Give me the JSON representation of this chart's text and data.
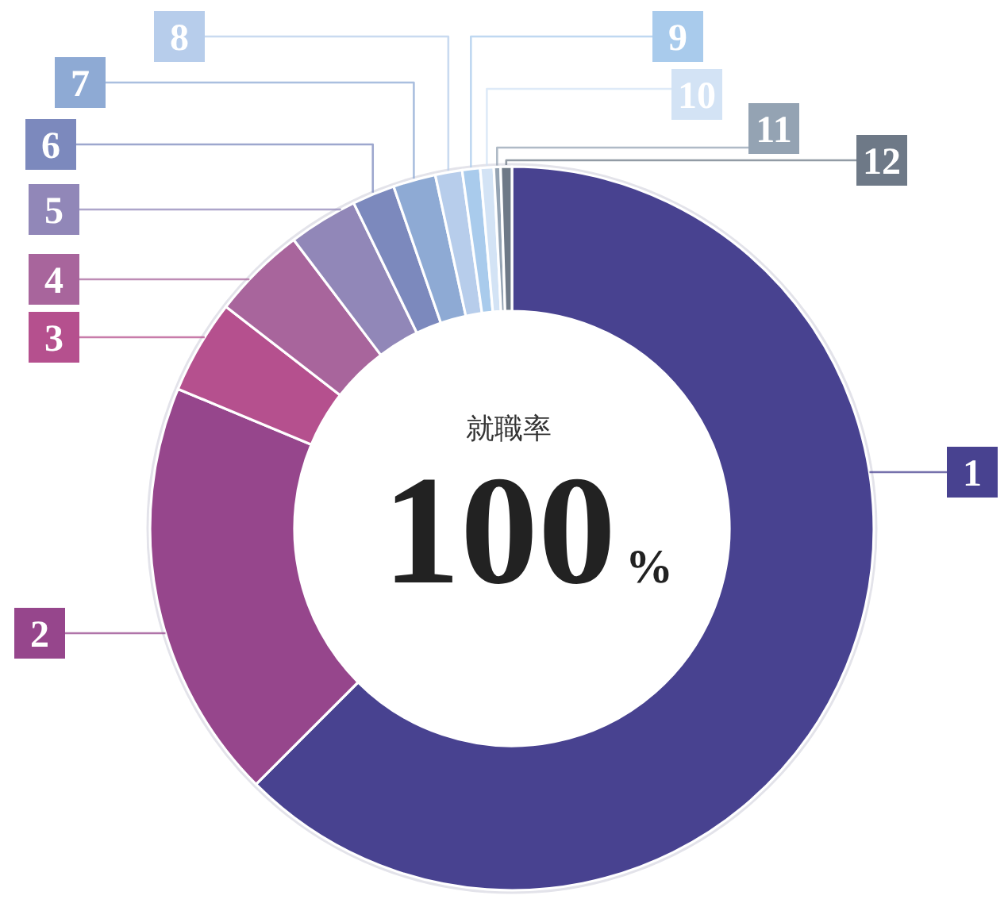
{
  "chart_data": {
    "type": "donut",
    "categories": [
      "1",
      "2",
      "3",
      "4",
      "5",
      "6",
      "7",
      "8",
      "9",
      "10",
      "11",
      "12"
    ],
    "values": [
      62.5,
      18.8,
      4.2,
      4.2,
      3.1,
      1.9,
      1.9,
      1.2,
      0.8,
      0.6,
      0.3,
      0.5
    ],
    "colors": [
      "#484290",
      "#96468c",
      "#b5508e",
      "#a8659c",
      "#9187b8",
      "#7c89bd",
      "#8eaad4",
      "#b7cdeb",
      "#a9cbec",
      "#d3e3f5",
      "#94a3b3",
      "#6e7987"
    ],
    "annotations": [
      "就職率",
      "100%"
    ]
  }
}
